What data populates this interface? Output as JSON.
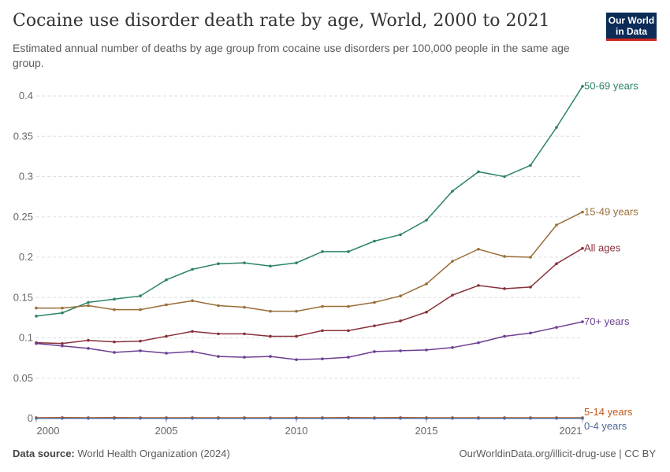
{
  "title": "Cocaine use disorder death rate by age, World, 2000 to 2021",
  "subtitle": "Estimated annual number of deaths by age group from cocaine use disorders per 100,000 people in the same age group.",
  "logo": "Our World in Data",
  "footer": {
    "source_label": "Data source:",
    "source": "World Health Organization (2024)",
    "license": "OurWorldinData.org/illicit-drug-use | CC BY"
  },
  "chart_data": {
    "type": "line",
    "x": [
      2000,
      2001,
      2002,
      2003,
      2004,
      2005,
      2006,
      2007,
      2008,
      2009,
      2010,
      2011,
      2012,
      2013,
      2014,
      2015,
      2016,
      2017,
      2018,
      2019,
      2020,
      2021
    ],
    "xticks": [
      "2000",
      "2005",
      "2010",
      "2015",
      "2021"
    ],
    "yticks": [
      "0",
      "0.05",
      "0.1",
      "0.15",
      "0.2",
      "0.25",
      "0.3",
      "0.35",
      "0.4"
    ],
    "ylim": [
      0,
      0.42
    ],
    "grid": "horizontal dashed",
    "legend": "inline-right",
    "series": [
      {
        "name": "50-69 years",
        "color": "#2c8465",
        "values": [
          0.127,
          0.131,
          0.144,
          0.148,
          0.152,
          0.172,
          0.185,
          0.192,
          0.193,
          0.189,
          0.193,
          0.207,
          0.207,
          0.22,
          0.228,
          0.246,
          0.282,
          0.306,
          0.3,
          0.314,
          0.361,
          0.412
        ]
      },
      {
        "name": "15-49 years",
        "color": "#996d39",
        "values": [
          0.137,
          0.137,
          0.14,
          0.135,
          0.135,
          0.141,
          0.146,
          0.14,
          0.138,
          0.133,
          0.133,
          0.139,
          0.139,
          0.144,
          0.152,
          0.167,
          0.195,
          0.21,
          0.201,
          0.2,
          0.24,
          0.256
        ]
      },
      {
        "name": "All ages",
        "color": "#883039",
        "values": [
          0.094,
          0.093,
          0.097,
          0.095,
          0.096,
          0.102,
          0.108,
          0.105,
          0.105,
          0.102,
          0.102,
          0.109,
          0.109,
          0.115,
          0.121,
          0.132,
          0.153,
          0.165,
          0.161,
          0.163,
          0.192,
          0.211
        ]
      },
      {
        "name": "70+ years",
        "color": "#6d3e91",
        "values": [
          0.093,
          0.09,
          0.087,
          0.082,
          0.084,
          0.081,
          0.083,
          0.077,
          0.076,
          0.077,
          0.073,
          0.074,
          0.076,
          0.083,
          0.084,
          0.085,
          0.088,
          0.094,
          0.102,
          0.106,
          0.113,
          0.12
        ]
      },
      {
        "name": "5-14 years",
        "color": "#c05917",
        "values": [
          0.001,
          0.0012,
          0.001,
          0.0012,
          0.001,
          0.001,
          0.001,
          0.001,
          0.001,
          0.001,
          0.001,
          0.001,
          0.0012,
          0.001,
          0.0012,
          0.001,
          0.001,
          0.001,
          0.001,
          0.001,
          0.001,
          0.001
        ]
      },
      {
        "name": "0-4 years",
        "color": "#4c6a9c",
        "values": [
          0.0003,
          0.0003,
          0.0003,
          0.0003,
          0.0003,
          0.0003,
          0.0003,
          0.0003,
          0.0003,
          0.0003,
          0.0003,
          0.0003,
          0.0003,
          0.0003,
          0.0003,
          0.0003,
          0.0003,
          0.0003,
          0.0003,
          0.0003,
          0.0003,
          0.0003
        ]
      }
    ]
  }
}
